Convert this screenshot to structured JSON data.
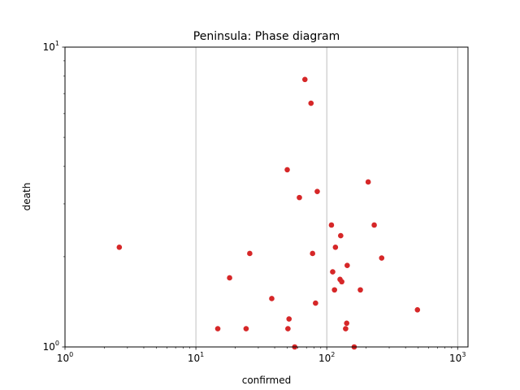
{
  "chart_data": {
    "type": "scatter",
    "title": "Peninsula: Phase diagram",
    "xlabel": "confirmed",
    "ylabel": "death",
    "xscale": "log",
    "yscale": "log",
    "xlim": [
      1,
      1200
    ],
    "ylim": [
      1,
      10
    ],
    "grid": "vertical major",
    "legend": "none",
    "colors": {
      "points": "#d62728",
      "grid": "#b0b0b0"
    },
    "x_ticks": [
      {
        "value": 1,
        "base": "10",
        "exp": "0"
      },
      {
        "value": 10,
        "base": "10",
        "exp": "1"
      },
      {
        "value": 100,
        "base": "10",
        "exp": "2"
      },
      {
        "value": 1000,
        "base": "10",
        "exp": "3"
      }
    ],
    "y_ticks": [
      {
        "value": 1,
        "base": "10",
        "exp": "0"
      },
      {
        "value": 10,
        "base": "10",
        "exp": "1"
      }
    ],
    "points": [
      [
        2.6,
        2.15
      ],
      [
        14.7,
        1.15
      ],
      [
        18.1,
        1.7
      ],
      [
        24.2,
        1.15
      ],
      [
        25.8,
        2.05
      ],
      [
        38,
        1.45
      ],
      [
        49.9,
        3.9
      ],
      [
        50.5,
        1.15
      ],
      [
        51.5,
        1.24
      ],
      [
        56.9,
        1.0
      ],
      [
        61.8,
        3.15
      ],
      [
        68.1,
        7.8
      ],
      [
        75.8,
        6.5
      ],
      [
        77.9,
        2.05
      ],
      [
        82.1,
        1.4
      ],
      [
        84.6,
        3.3
      ],
      [
        108.6,
        2.55
      ],
      [
        111,
        1.78
      ],
      [
        114.6,
        1.55
      ],
      [
        116.5,
        2.15
      ],
      [
        126.3,
        1.68
      ],
      [
        127.8,
        2.35
      ],
      [
        130.2,
        1.65
      ],
      [
        139.4,
        1.15
      ],
      [
        142,
        1.2
      ],
      [
        143.3,
        1.87
      ],
      [
        162,
        1.0
      ],
      [
        180.6,
        1.55
      ],
      [
        207.3,
        3.55
      ],
      [
        230.5,
        2.55
      ],
      [
        262.8,
        1.98
      ],
      [
        493.1,
        1.33
      ]
    ]
  }
}
